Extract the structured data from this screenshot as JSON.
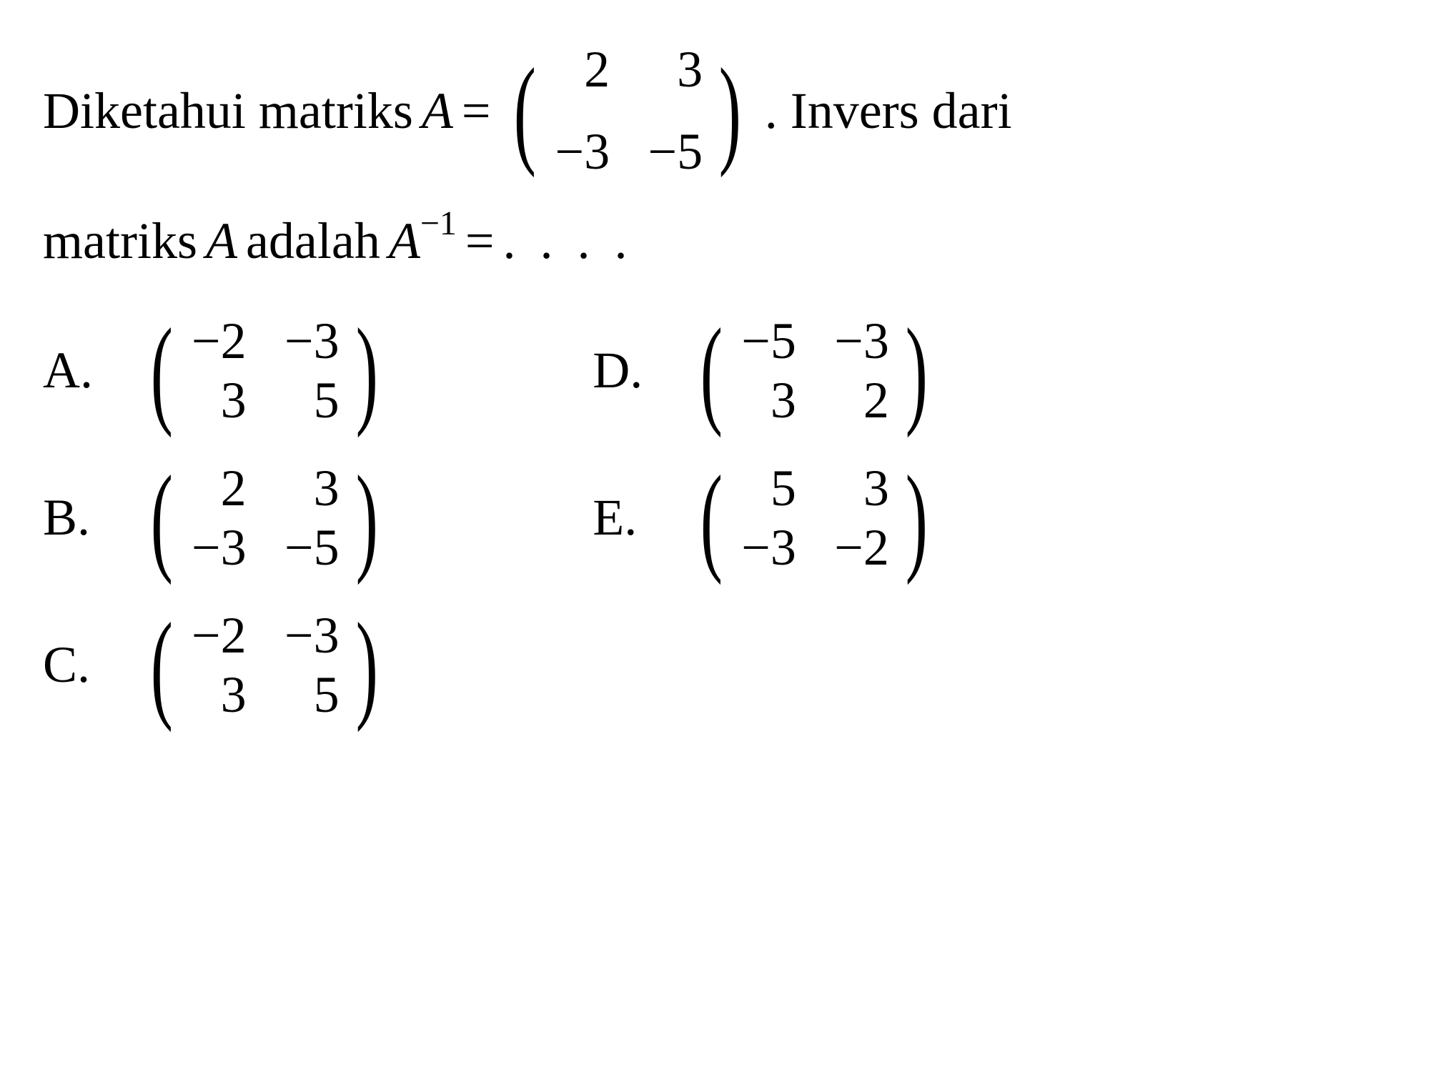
{
  "question": {
    "text_part1": "Diketahui matriks",
    "var_A": "A",
    "equals": "=",
    "matrix_A": {
      "rows": [
        [
          "2",
          "3"
        ],
        [
          "−3",
          "−5"
        ]
      ]
    },
    "text_part2": ". Invers dari",
    "text_line2_part1": "matriks",
    "var_A2": "A",
    "text_line2_part2": "adalah",
    "var_Ainv": "A",
    "superscript": "−1",
    "equals2": "=",
    "dots": ". . . ."
  },
  "options": {
    "A": {
      "label": "A.",
      "matrix": {
        "rows": [
          [
            "−2",
            "−3"
          ],
          [
            "3",
            "5"
          ]
        ]
      }
    },
    "B": {
      "label": "B.",
      "matrix": {
        "rows": [
          [
            "2",
            "3"
          ],
          [
            "−3",
            "−5"
          ]
        ]
      }
    },
    "C": {
      "label": "C.",
      "matrix": {
        "rows": [
          [
            "−2",
            "−3"
          ],
          [
            "3",
            "5"
          ]
        ]
      }
    },
    "D": {
      "label": "D.",
      "matrix": {
        "rows": [
          [
            "−5",
            "−3"
          ],
          [
            "3",
            "2"
          ]
        ]
      }
    },
    "E": {
      "label": "E.",
      "matrix": {
        "rows": [
          [
            "5",
            "3"
          ],
          [
            "−3",
            "−2"
          ]
        ]
      }
    }
  },
  "styling": {
    "background_color": "#ffffff",
    "text_color": "#000000",
    "font_family": "Times New Roman",
    "question_fontsize": 72,
    "matrix_cell_fontsize": 72,
    "option_label_fontsize": 72
  }
}
